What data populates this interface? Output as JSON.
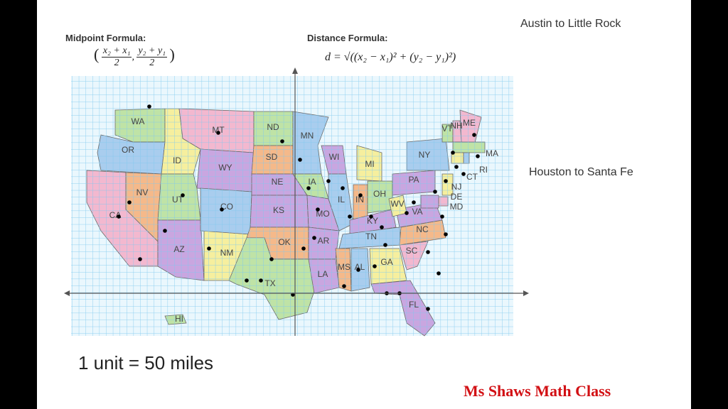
{
  "header": {
    "midpoint_title": "Midpoint Formula:",
    "midpoint_num1": "x₂ + x₁",
    "midpoint_den1": "2",
    "midpoint_num2": "y₂ + y₁",
    "midpoint_den2": "2",
    "distance_title": "Distance Formula:",
    "distance_formula": "d = √((x₂ − x₁)² + (y₂ − y₁)²)"
  },
  "notes": {
    "problem1": "Austin to Little Rock",
    "problem2": "Houston to Santa Fe",
    "scale": "1 unit = 50 miles",
    "brand": "Ms Shaws Math Class"
  },
  "map": {
    "states": [
      "WA",
      "OR",
      "CA",
      "NV",
      "ID",
      "MT",
      "WY",
      "UT",
      "AZ",
      "NM",
      "CO",
      "ND",
      "SD",
      "NE",
      "KS",
      "OK",
      "TX",
      "MN",
      "IA",
      "MO",
      "AR",
      "LA",
      "WI",
      "IL",
      "MS",
      "MI",
      "IN",
      "KY",
      "TN",
      "AL",
      "OH",
      "GA",
      "FL",
      "SC",
      "NC",
      "VA",
      "WV",
      "PA",
      "NY",
      "VT",
      "NH",
      "ME",
      "MA",
      "CT",
      "RI",
      "NJ",
      "DE",
      "MD",
      "HI"
    ],
    "colors": {
      "pink": "#f3b8cf",
      "purple": "#c9a6e0",
      "blue": "#a9cdee",
      "green": "#bfe3a6",
      "yellow": "#f6ef9e",
      "orange": "#f5b98a",
      "grid": "#7fc8ee",
      "axis": "#555555",
      "dot": "#000000"
    }
  }
}
